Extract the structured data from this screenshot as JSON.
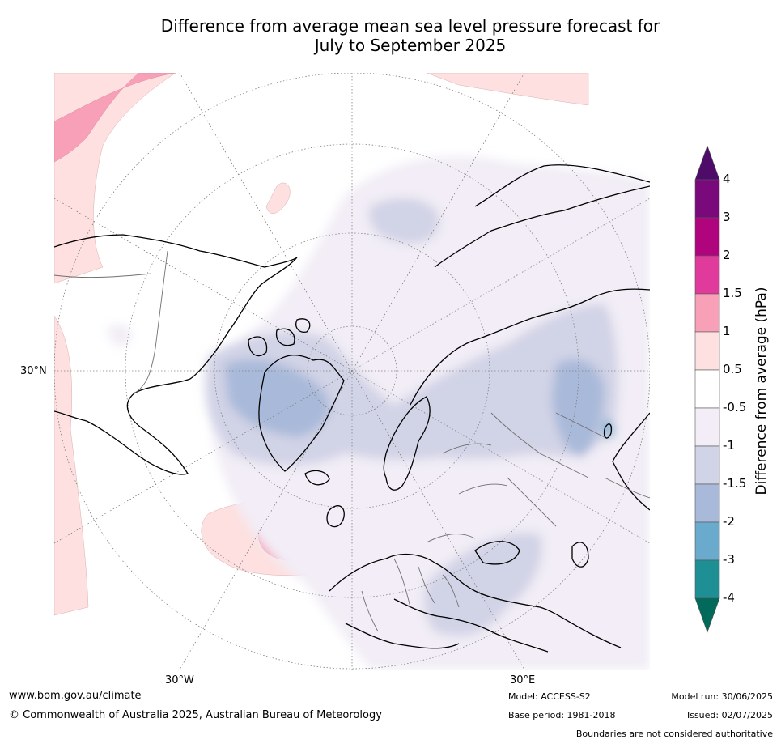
{
  "title_line1": "Difference from average mean sea level pressure forecast for",
  "title_line2": "July to September 2025",
  "map": {
    "lat_label": "30°N",
    "lon_labels": [
      "30°W",
      "30°E"
    ]
  },
  "colorbar": {
    "title": "Difference from average (hPa)",
    "tick_labels": [
      "4",
      "3",
      "2",
      "1.5",
      "1",
      "0.5",
      "-0.5",
      "-1",
      "-1.5",
      "-2",
      "-3",
      "-4"
    ],
    "colors": [
      "#7a0a7c",
      "#b0047f",
      "#e03a9c",
      "#f8a0b8",
      "#fde0df",
      "#ffffff",
      "#f2edf6",
      "#d1d3e6",
      "#a9b9d9",
      "#69aacd",
      "#1f8f96"
    ],
    "top_triangle_color": "#4e0b6a",
    "bottom_triangle_color": "#016a5a"
  },
  "footer": {
    "url": "www.bom.gov.au/climate",
    "copyright": "© Commonwealth of Australia 2025, Australian Bureau of Meteorology",
    "model": "Model: ACCESS-S2",
    "base_period": "Base period: 1981-2018",
    "model_run": "Model run: 30/06/2025",
    "issued": "Issued: 02/07/2025",
    "disclaimer": "Boundaries are not considered authoritative"
  }
}
